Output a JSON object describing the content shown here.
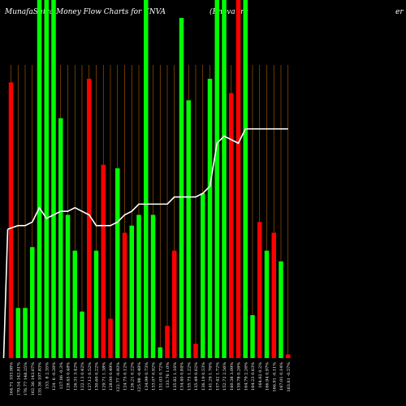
{
  "chart_data": {
    "type": "bar",
    "title": "MunafaSutra Money Flow Charts for ENVA",
    "subtitle": "(Enova Int",
    "title_suffix": "er",
    "colors": {
      "up": "#00ff00",
      "down": "#ff0000",
      "line": "#ffffff",
      "grid": "#ff8c00",
      "background": "#000000"
    },
    "ylim": [
      0,
      100
    ],
    "grid": true,
    "bars": [
      {
        "label": "164.71 103.98%",
        "value": 77,
        "color": "down"
      },
      {
        "label": "170.54 142.81%",
        "value": 14,
        "color": "up"
      },
      {
        "label": "176.77 148.25%",
        "value": 14,
        "color": "up"
      },
      {
        "label": "162.36 143.67%",
        "value": 31,
        "color": "up"
      },
      {
        "label": "135.36 107.83%",
        "value": 100,
        "color": "up"
      },
      {
        "label": "133. 8 2.35%",
        "value": 100,
        "color": "up"
      },
      {
        "label": "124. 6 -0.28%",
        "value": 100,
        "color": "up"
      },
      {
        "label": "127.06 -0.3%",
        "value": 67,
        "color": "up"
      },
      {
        "label": "128.45 0.48%",
        "value": 40,
        "color": "up"
      },
      {
        "label": "126.31 3.42%",
        "value": 30,
        "color": "up"
      },
      {
        "label": "122.13 0.42%",
        "value": 13,
        "color": "up"
      },
      {
        "label": "127.12 0.52%",
        "value": 78,
        "color": "down"
      },
      {
        "label": "130.60 0.22%",
        "value": 30,
        "color": "up"
      },
      {
        "label": "129.71 1.38%",
        "value": 54,
        "color": "down"
      },
      {
        "label": "128.00 0.49%",
        "value": 11,
        "color": "down"
      },
      {
        "label": "122.77 -0.93%",
        "value": 53,
        "color": "up"
      },
      {
        "label": "124.75 0.12%",
        "value": 35,
        "color": "down"
      },
      {
        "label": "126.21 0.22%",
        "value": 37,
        "color": "up"
      },
      {
        "label": "125.98 -0.48%",
        "value": 40,
        "color": "up"
      },
      {
        "label": "134.99 0.73%",
        "value": 100,
        "color": "up"
      },
      {
        "label": "133.07 0.92%",
        "value": 40,
        "color": "up"
      },
      {
        "label": "131.03 0.72%",
        "value": 3,
        "color": "up"
      },
      {
        "label": "133.76 1.0%",
        "value": 9,
        "color": "down"
      },
      {
        "label": "135.82 1.16%",
        "value": 30,
        "color": "down"
      },
      {
        "label": "134.40 0.84%",
        "value": 95,
        "color": "up"
      },
      {
        "label": "135.75 1.22%",
        "value": 72,
        "color": "up"
      },
      {
        "label": "135.49 0.62%",
        "value": 4,
        "color": "down"
      },
      {
        "label": "136.19 0.53%",
        "value": 46,
        "color": "up"
      },
      {
        "label": "141.29 1.76%",
        "value": 78,
        "color": "up"
      },
      {
        "label": "157.42 1.72%",
        "value": 100,
        "color": "up"
      },
      {
        "label": "152.72 2.56%",
        "value": 100,
        "color": "up"
      },
      {
        "label": "160.38 3.09%",
        "value": 74,
        "color": "down"
      },
      {
        "label": "159.78 0.26%",
        "value": 100,
        "color": "down"
      },
      {
        "label": "164.79 2.26%",
        "value": 100,
        "color": "up"
      },
      {
        "label": "164.23 0.63%",
        "value": 12,
        "color": "up"
      },
      {
        "label": "164.62 0.2%",
        "value": 38,
        "color": "down"
      },
      {
        "label": "166.94 0.97%",
        "value": 30,
        "color": "up"
      },
      {
        "label": "166.91 -0.11%",
        "value": 35,
        "color": "down"
      },
      {
        "label": "167.01 0.14%",
        "value": 27,
        "color": "up"
      },
      {
        "label": "163.61 -0.57%",
        "value": 1,
        "color": "down"
      }
    ],
    "line_values": [
      36,
      37,
      37,
      38,
      42,
      39,
      40,
      41,
      41,
      42,
      41,
      40,
      37,
      37,
      37,
      38,
      40,
      41,
      43,
      43,
      43,
      43,
      43,
      45,
      45,
      45,
      45,
      46,
      48,
      60,
      62,
      61,
      60,
      64,
      64,
      64,
      64,
      64,
      64,
      64
    ]
  }
}
